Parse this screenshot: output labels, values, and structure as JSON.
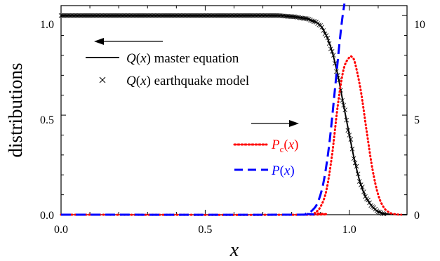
{
  "chart_data": {
    "type": "line",
    "xlabel": "x",
    "ylabel": "distributions",
    "xlim": [
      0.0,
      1.2
    ],
    "ylim_left": [
      0.0,
      1.05
    ],
    "ylim_right": [
      0,
      10.5
    ],
    "x_ticks": [
      "0.0",
      "0.5",
      "1.0"
    ],
    "y_left_ticks": [
      "0.0",
      "0.5",
      "1.0"
    ],
    "y_right_ticks": [
      "0",
      "5",
      "10"
    ],
    "grid": false,
    "series": [
      {
        "name": "Q(x) master equation",
        "name_plain": "master equation",
        "style": "solid",
        "marker": "none",
        "color": "#000000",
        "axis": "left",
        "x": [
          0.0,
          0.2,
          0.4,
          0.6,
          0.75,
          0.8,
          0.85,
          0.88,
          0.9,
          0.92,
          0.94,
          0.96,
          0.98,
          1.0,
          1.02,
          1.04,
          1.06,
          1.08,
          1.1,
          1.13,
          1.16,
          1.2
        ],
        "values": [
          1.0,
          1.0,
          1.0,
          1.0,
          1.0,
          0.995,
          0.985,
          0.97,
          0.95,
          0.9,
          0.82,
          0.7,
          0.55,
          0.4,
          0.26,
          0.15,
          0.08,
          0.04,
          0.015,
          0.004,
          0.001,
          0.0
        ]
      },
      {
        "name": "Q(x) earthquake model",
        "name_plain": "earthquake model",
        "style": "none",
        "marker": "x",
        "color": "#000000",
        "axis": "left",
        "x": [
          0.0,
          0.2,
          0.4,
          0.6,
          0.75,
          0.8,
          0.85,
          0.88,
          0.9,
          0.92,
          0.94,
          0.96,
          0.98,
          1.0,
          1.02,
          1.04,
          1.06,
          1.08,
          1.1,
          1.12
        ],
        "values": [
          1.0,
          1.0,
          1.0,
          1.0,
          1.0,
          0.995,
          0.985,
          0.97,
          0.95,
          0.9,
          0.82,
          0.7,
          0.55,
          0.4,
          0.26,
          0.15,
          0.08,
          0.04,
          0.015,
          0.004
        ]
      },
      {
        "name": "Pc(x)",
        "style": "dotted",
        "marker": "none",
        "color": "#ff0000",
        "axis": "right",
        "x": [
          0.0,
          0.85,
          0.88,
          0.9,
          0.92,
          0.94,
          0.96,
          0.98,
          1.0,
          1.01,
          1.02,
          1.04,
          1.06,
          1.08,
          1.1,
          1.12,
          1.14,
          1.16,
          1.18
        ],
        "values": [
          0.0,
          0.0,
          0.1,
          0.4,
          1.2,
          3.0,
          5.5,
          7.3,
          7.9,
          7.9,
          7.6,
          6.2,
          4.2,
          2.3,
          1.0,
          0.35,
          0.1,
          0.02,
          0.0
        ]
      },
      {
        "name": "P(x)",
        "style": "dashed",
        "marker": "none",
        "color": "#0000ff",
        "axis": "right",
        "x": [
          0.0,
          0.8,
          0.85,
          0.87,
          0.89,
          0.91,
          0.93,
          0.95,
          0.965,
          0.975,
          0.983
        ],
        "values": [
          0.0,
          0.0,
          0.05,
          0.2,
          0.6,
          1.6,
          3.5,
          6.3,
          8.5,
          9.8,
          10.6
        ]
      }
    ],
    "arrows": [
      "left-pointing arrow near upper legend (left axis)",
      "right-pointing arrow above lower legend (right axis)"
    ],
    "legend_placement": [
      "upper-left (Q curves)",
      "center-right (P curves)"
    ]
  },
  "legend": {
    "q_symbol": "Q",
    "open_paren": "(",
    "x_var": "x",
    "close_paren": ")",
    "master_text": " master equation",
    "earthquake_text": " earthquake model",
    "p_symbol": "P",
    "c_subscript": "c"
  }
}
